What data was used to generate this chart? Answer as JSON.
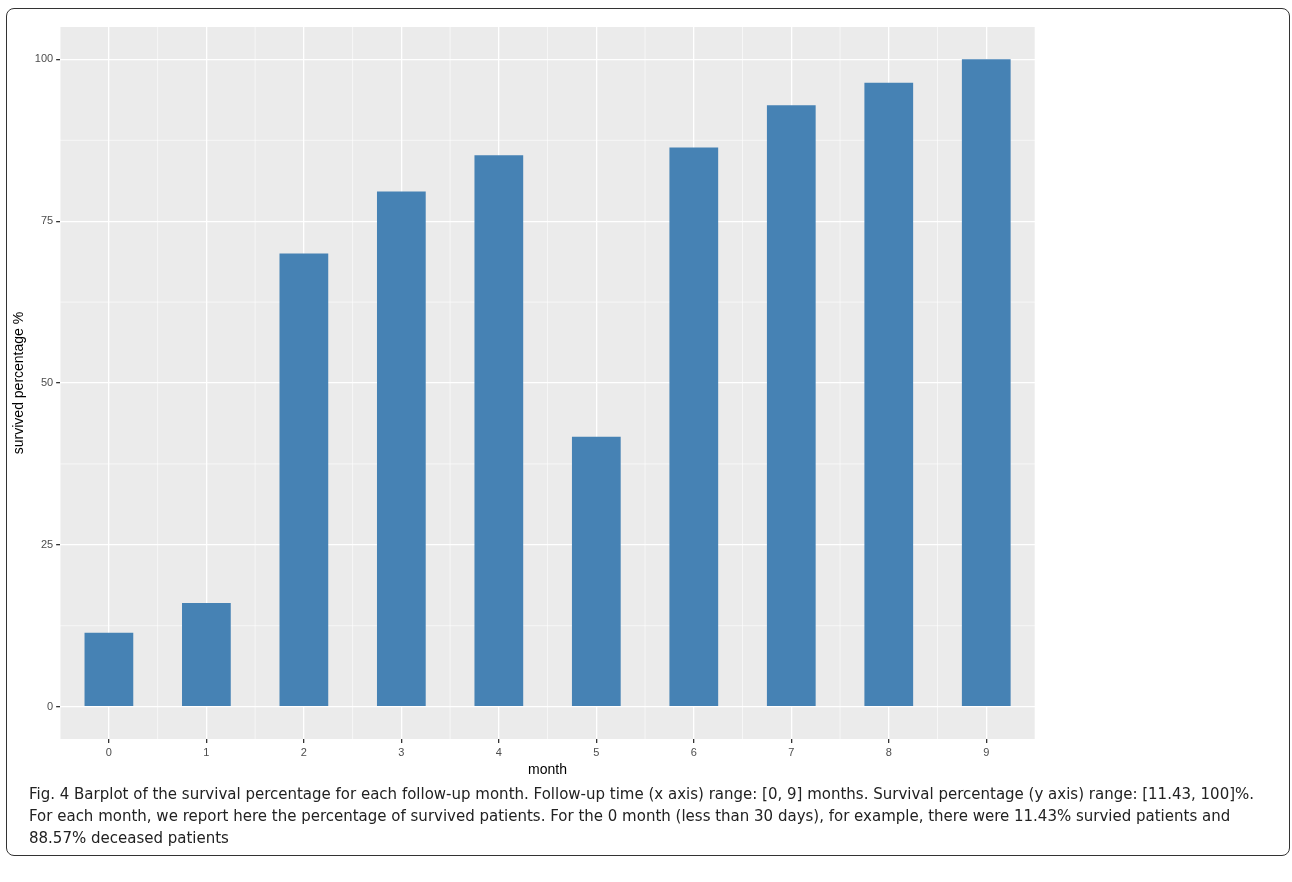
{
  "chart_data": {
    "type": "bar",
    "xlabel": "month",
    "ylabel": "survived percentage %",
    "categories": [
      "0",
      "1",
      "2",
      "3",
      "4",
      "5",
      "6",
      "7",
      "8",
      "9"
    ],
    "values": [
      11.43,
      16,
      70,
      79.6,
      85.2,
      41.7,
      86.4,
      92.9,
      96.4,
      100
    ],
    "color": "#4682b4",
    "ylim": [
      -5,
      105
    ],
    "yticks": [
      0,
      25,
      50,
      75,
      100
    ],
    "grid": true,
    "legend": false,
    "annotations": [
      "Fig. 4 Barplot of the survival percentage for each follow-up month. Follow-up time (x axis) range: [0, 9] months. Survival percentage (y axis) range: [11.43, 100]%. For each month, we report here the percentage of survived patients. For the 0 month (less than 30 days), for example, there were 11.43% survied patients and 88.57% deceased patients"
    ]
  }
}
